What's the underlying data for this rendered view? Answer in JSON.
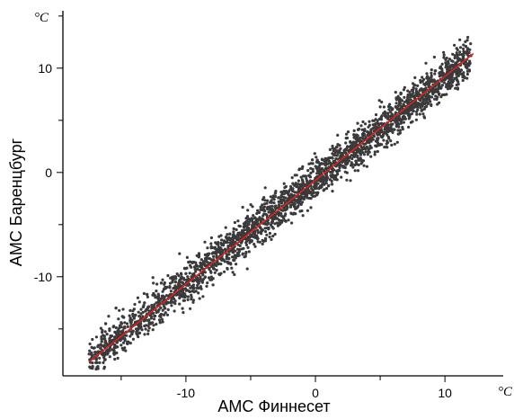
{
  "chart_data": {
    "type": "scatter",
    "title": "",
    "xlabel": "АМС Финнесет",
    "ylabel": "АМС Баренцбург",
    "x_unit": "°C",
    "y_unit": "°C",
    "xlim": [
      -19.5,
      14.5
    ],
    "ylim": [
      -19.5,
      15.5
    ],
    "x_ticks": [
      -10,
      0,
      10
    ],
    "y_ticks": [
      -10,
      0,
      10
    ],
    "x_tick_labels": [
      "-10",
      "0",
      "10"
    ],
    "y_tick_labels": [
      "-10",
      "0",
      "10"
    ],
    "grid": false,
    "legend": "none",
    "point_color": "#3a3a3a",
    "fit_line_color": "#e02020",
    "fit_line": {
      "x": [
        -17.5,
        12.2
      ],
      "y": [
        -18.2,
        11.4
      ]
    },
    "x": [
      -17.2,
      -16.5,
      -16.0,
      -15.6,
      -15.2,
      -14.8,
      -14.4,
      -14.0,
      -13.6,
      -13.2,
      -12.8,
      -12.4,
      -12.0,
      -11.6,
      -11.2,
      -10.8,
      -10.4,
      -10.0,
      -9.6,
      -9.2,
      -8.8,
      -8.4,
      -8.0,
      -7.6,
      -7.2,
      -6.8,
      -6.4,
      -6.0,
      -5.6,
      -5.2,
      -4.8,
      -4.4,
      -4.0,
      -3.6,
      -3.2,
      -2.8,
      -2.4,
      -2.0,
      -1.6,
      -1.2,
      -0.8,
      -0.4,
      0.0,
      0.4,
      0.8,
      1.2,
      1.6,
      2.0,
      2.4,
      2.8,
      3.2,
      3.6,
      4.0,
      4.4,
      4.8,
      5.2,
      5.6,
      6.0,
      6.4,
      6.8,
      7.2,
      7.6,
      8.0,
      8.4,
      8.8,
      9.2,
      9.6,
      10.0,
      10.4,
      10.8,
      11.2,
      11.6,
      12.0,
      -16.8,
      -15.9,
      -15.0,
      -14.1,
      -13.3,
      -12.5,
      -11.7,
      -10.9,
      -10.1,
      -9.3,
      -8.5,
      -7.7,
      -6.9,
      -6.1,
      -5.3,
      -4.5,
      -3.7,
      -2.9,
      -2.1,
      -1.3,
      -0.5,
      0.3,
      1.1,
      1.9,
      2.7,
      3.5,
      4.3,
      5.1,
      5.9,
      6.7,
      7.5,
      8.3,
      9.1,
      9.9,
      10.7,
      -16.2,
      -14.6,
      -13.0,
      -11.4,
      -9.8,
      -8.2,
      -6.6,
      -5.0,
      -3.4,
      -1.8,
      -0.2,
      1.4,
      3.0,
      4.6,
      6.2,
      7.8,
      9.4,
      11.0,
      -15.4,
      -12.2,
      -9.0,
      -5.8,
      -2.6,
      0.6,
      3.8,
      7.0,
      10.2,
      -16.6,
      -14.9,
      -13.4,
      -11.9,
      -10.5,
      -9.4,
      -7.9,
      -6.3,
      -4.7,
      -3.1,
      -1.5,
      0.1,
      1.7,
      3.3,
      4.9,
      6.5,
      8.1,
      9.7,
      11.3
    ],
    "y": [
      -18.6,
      -16.2,
      -17.0,
      -14.8,
      -15.9,
      -13.9,
      -15.2,
      -13.1,
      -14.4,
      -12.5,
      -13.3,
      -11.8,
      -12.6,
      -11.0,
      -11.9,
      -10.5,
      -10.9,
      -9.7,
      -10.3,
      -8.9,
      -9.6,
      -8.2,
      -8.8,
      -7.4,
      -7.9,
      -6.7,
      -7.1,
      -6.0,
      -6.4,
      -5.3,
      -5.6,
      -4.5,
      -4.9,
      -3.8,
      -4.1,
      -3.1,
      -3.3,
      -2.3,
      -2.6,
      -1.5,
      -1.8,
      -0.8,
      -0.9,
      0.0,
      -0.2,
      0.8,
      0.6,
      1.5,
      1.4,
      2.3,
      2.1,
      3.0,
      2.9,
      3.7,
      3.6,
      4.5,
      4.3,
      5.3,
      5.0,
      6.0,
      5.9,
      6.8,
      6.6,
      7.6,
      7.3,
      8.3,
      8.1,
      9.0,
      8.9,
      9.8,
      10.3,
      10.6,
      11.2,
      -16.7,
      -15.0,
      -14.4,
      -13.6,
      -12.9,
      -11.6,
      -11.2,
      -10.0,
      -9.2,
      -9.1,
      -7.9,
      -7.6,
      -6.2,
      -6.3,
      -4.7,
      -5.0,
      -3.5,
      -3.4,
      -2.0,
      -1.9,
      -0.3,
      -0.1,
      1.4,
      1.4,
      2.9,
      3.0,
      4.1,
      4.7,
      5.6,
      6.2,
      7.3,
      7.8,
      8.8,
      9.4,
      10.1,
      -14.5,
      -15.3,
      -11.7,
      -12.5,
      -8.6,
      -9.2,
      -5.9,
      -6.1,
      -2.7,
      -2.5,
      0.3,
      0.9,
      3.4,
      4.0,
      6.3,
      7.6,
      8.7,
      10.9,
      -13.0,
      -12.8,
      -8.1,
      -6.4,
      -1.9,
      -0.4,
      4.1,
      6.3,
      9.3,
      -17.2,
      -13.8,
      -14.0,
      -10.6,
      -10.9,
      -8.6,
      -8.5,
      -5.4,
      -5.0,
      -2.0,
      -2.3,
      1.0,
      0.7,
      4.1,
      3.8,
      7.1,
      7.0,
      10.0,
      10.7
    ],
    "dense_cloud": {
      "count": 2600,
      "x_range": [
        -17.5,
        12.0
      ],
      "slope": 0.99,
      "intercept": -0.8,
      "spread": 0.95
    }
  }
}
